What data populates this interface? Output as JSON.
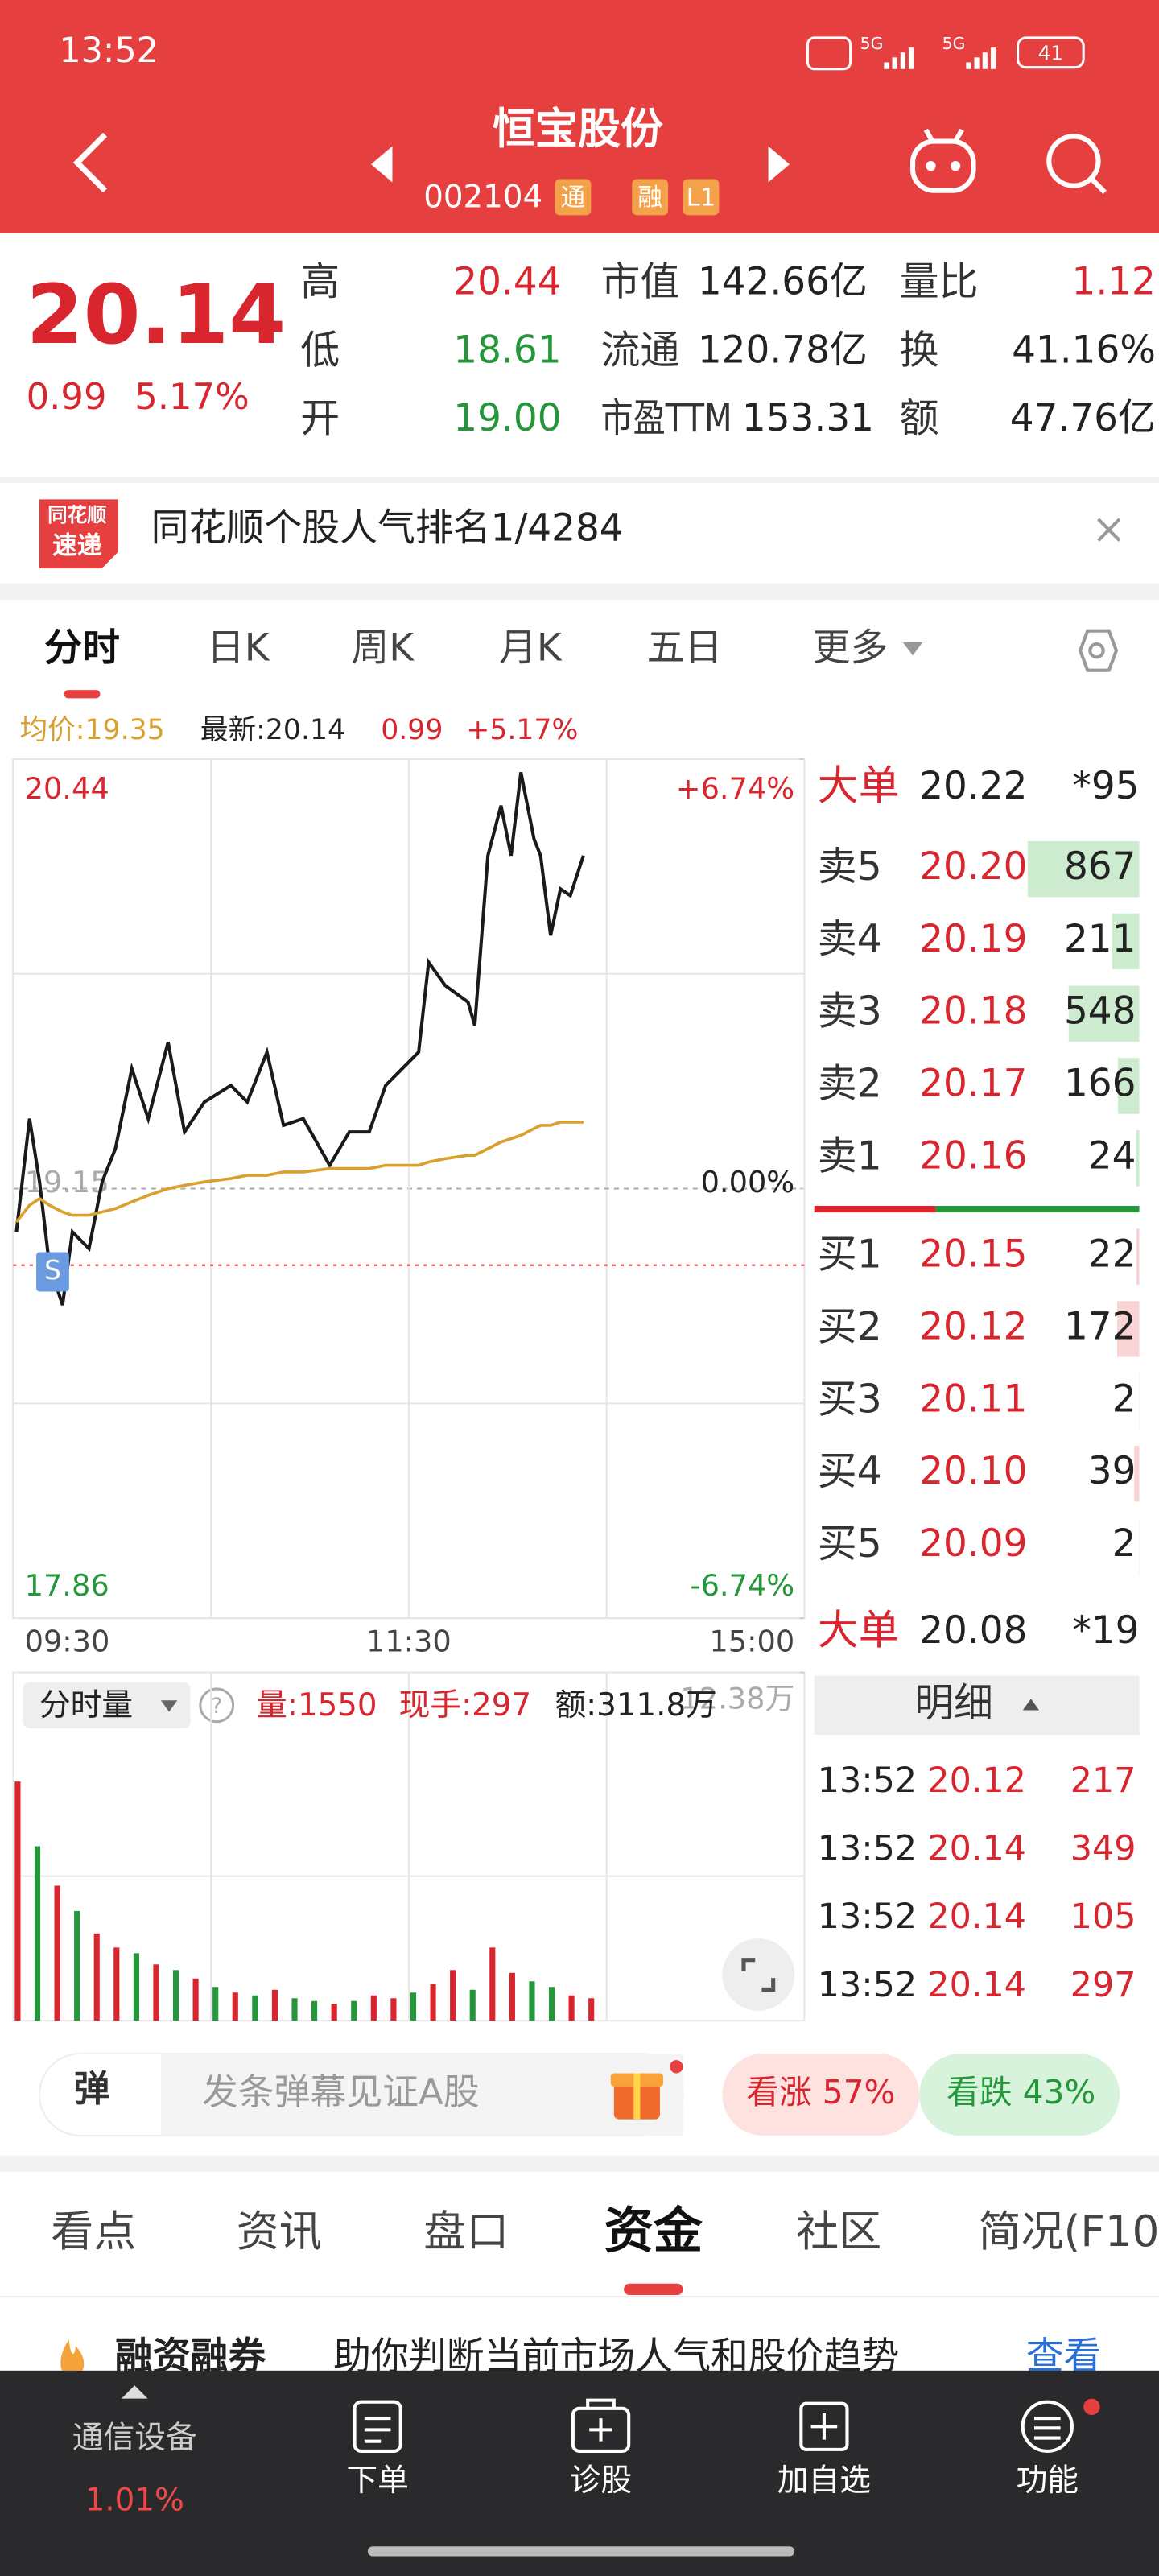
{
  "status_bar": {
    "time": "13:52",
    "network": "5G",
    "battery": "41"
  },
  "header": {
    "title": "恒宝股份",
    "code": "002104",
    "badges": [
      "通",
      "融",
      "L1"
    ]
  },
  "quote": {
    "price": "20.14",
    "change": "0.99",
    "change_pct": "5.17%",
    "fields": [
      {
        "label": "高",
        "value": "20.44",
        "trend": "up"
      },
      {
        "label": "低",
        "value": "18.61",
        "trend": "down"
      },
      {
        "label": "开",
        "value": "19.00",
        "trend": "down"
      },
      {
        "label": "市值",
        "value": "142.66亿"
      },
      {
        "label": "流通",
        "value": "120.78亿"
      },
      {
        "label": "市盈TTM",
        "value": "153.31"
      },
      {
        "label": "量比",
        "value": "1.12",
        "trend": "up"
      },
      {
        "label": "换",
        "value": "41.16%"
      },
      {
        "label": "额",
        "value": "47.76亿"
      }
    ]
  },
  "banner": {
    "logo": [
      "同花顺",
      "速递"
    ],
    "text": "同花顺个股人气排名1/4284"
  },
  "chart_tabs": {
    "items": [
      "分时",
      "日K",
      "周K",
      "月K",
      "五日",
      "更多"
    ],
    "active": 0
  },
  "chart_info": {
    "avg": "均价:19.35",
    "latest": "最新:20.14",
    "change": "0.99",
    "change_pct": "+5.17%"
  },
  "chart_data": [
    {
      "type": "line",
      "x": [
        1,
        5,
        8,
        11,
        15,
        18,
        23,
        27,
        31,
        36,
        41,
        47,
        52,
        58,
        66,
        71,
        77,
        82,
        88,
        96,
        102,
        108,
        113,
        118,
        123,
        126,
        131,
        138,
        140,
        144,
        148,
        151,
        154,
        158,
        160,
        163,
        166,
        169,
        173
      ],
      "series": [
        {
          "color": "#1a1a1a",
          "values": [
            19.02,
            19.36,
            19.17,
            18.92,
            18.8,
            19.02,
            18.97,
            19.17,
            19.27,
            19.51,
            19.36,
            19.59,
            19.32,
            19.41,
            19.46,
            19.41,
            19.56,
            19.34,
            19.36,
            19.22,
            19.32,
            19.32,
            19.46,
            19.51,
            19.56,
            19.83,
            19.76,
            19.71,
            19.64,
            20.15,
            20.3,
            20.15,
            20.4,
            20.2,
            20.15,
            19.91,
            20.05,
            20.03,
            20.15
          ]
        },
        {
          "color": "#d9a02f",
          "values": [
            19.05,
            19.1,
            19.12,
            19.1,
            19.08,
            19.07,
            19.07,
            19.08,
            19.09,
            19.11,
            19.13,
            19.15,
            19.16,
            19.17,
            19.18,
            19.19,
            19.19,
            19.2,
            19.2,
            19.21,
            19.21,
            19.21,
            19.22,
            19.22,
            19.22,
            19.23,
            19.24,
            19.25,
            19.25,
            19.27,
            19.29,
            19.3,
            19.31,
            19.33,
            19.34,
            19.34,
            19.35,
            19.35,
            19.35
          ]
        }
      ],
      "xlim": [
        0,
        240
      ],
      "xticks": [
        {
          "value": 0,
          "label": "09:30"
        },
        {
          "value": 120,
          "label": "11:30"
        },
        {
          "value": 240,
          "label": "15:00"
        }
      ],
      "ylim": [
        17.86,
        20.44
      ],
      "yticks": [
        17.86,
        19.15,
        20.44
      ],
      "y2lim": [
        -6.74,
        6.74
      ],
      "y2ticks": [
        {
          "value": -6.74,
          "label": "-6.74%"
        },
        {
          "value": 0,
          "label": "0.00%"
        },
        {
          "value": 6.74,
          "label": "+6.74%"
        }
      ],
      "grid": true,
      "reference_line": 18.92,
      "annotations": [
        {
          "x": 12,
          "y": 18.9,
          "label": "S"
        }
      ]
    },
    {
      "type": "bar",
      "title": "分时量",
      "stats": [
        "量:1550",
        "现手:297",
        "额:311.8万"
      ],
      "x": [
        0,
        6,
        12,
        18,
        24,
        30,
        36,
        42,
        48,
        54,
        60,
        66,
        72,
        78,
        84,
        90,
        96,
        102,
        108,
        114,
        120,
        126,
        132,
        138,
        144,
        150,
        156,
        162,
        168,
        174
      ],
      "values": [
        8.5,
        6.2,
        4.8,
        3.9,
        3.1,
        2.6,
        2.4,
        2.0,
        1.8,
        1.5,
        1.2,
        1.0,
        0.9,
        1.1,
        0.8,
        0.7,
        0.6,
        0.7,
        0.9,
        0.8,
        1.0,
        1.3,
        1.8,
        1.1,
        2.6,
        1.7,
        1.4,
        1.2,
        0.9,
        0.8
      ],
      "colors": [
        "#d9262e",
        "#23973a",
        "#d9262e",
        "#23973a",
        "#d9262e",
        "#d9262e",
        "#23973a",
        "#d9262e",
        "#23973a",
        "#d9262e",
        "#23973a",
        "#d9262e",
        "#23973a",
        "#d9262e",
        "#23973a",
        "#23973a",
        "#d9262e",
        "#23973a",
        "#d9262e",
        "#d9262e",
        "#23973a",
        "#d9262e",
        "#d9262e",
        "#23973a",
        "#d9262e",
        "#d9262e",
        "#23973a",
        "#23973a",
        "#d9262e",
        "#d9262e"
      ],
      "xlim": [
        0,
        240
      ],
      "ylim": [
        0,
        12.38
      ],
      "yticks": [
        {
          "value": 12.38,
          "label": "12.38万"
        }
      ]
    }
  ],
  "order_book": {
    "big_top": {
      "label": "大单",
      "price": "20.22",
      "count": "*95"
    },
    "asks": [
      {
        "label": "卖5",
        "price": "20.20",
        "volume": 867
      },
      {
        "label": "卖4",
        "price": "20.19",
        "volume": 211
      },
      {
        "label": "卖3",
        "price": "20.18",
        "volume": 548
      },
      {
        "label": "卖2",
        "price": "20.17",
        "volume": 166
      },
      {
        "label": "卖1",
        "price": "20.16",
        "volume": 24
      }
    ],
    "bids": [
      {
        "label": "买1",
        "price": "20.15",
        "volume": 22
      },
      {
        "label": "买2",
        "price": "20.12",
        "volume": 172
      },
      {
        "label": "买3",
        "price": "20.11",
        "volume": 2
      },
      {
        "label": "买4",
        "price": "20.10",
        "volume": 39
      },
      {
        "label": "买5",
        "price": "20.09",
        "volume": 2
      }
    ],
    "big_bottom": {
      "label": "大单",
      "price": "20.08",
      "count": "*19"
    }
  },
  "trades": {
    "title": "明细",
    "rows": [
      {
        "time": "13:52",
        "price": "20.12",
        "volume": 217
      },
      {
        "time": "13:52",
        "price": "20.14",
        "volume": 349
      },
      {
        "time": "13:52",
        "price": "20.14",
        "volume": 105
      },
      {
        "time": "13:52",
        "price": "20.14",
        "volume": 297
      }
    ]
  },
  "barrage": {
    "icon": "弹",
    "placeholder": "发条弹幕见证A股",
    "bull": "看涨 57%",
    "bear": "看跌 43%"
  },
  "section_tabs": {
    "items": [
      "看点",
      "资讯",
      "盘口",
      "资金",
      "社区",
      "简况(F10"
    ],
    "active": 3
  },
  "promo": {
    "title": "融资融券",
    "text": "助你判断当前市场人气和股价趋势",
    "link": "查看"
  },
  "bottom_nav": {
    "sector": "通信设备",
    "sector_change": "1.01%",
    "items": [
      "下单",
      "诊股",
      "加自选",
      "功能"
    ]
  }
}
